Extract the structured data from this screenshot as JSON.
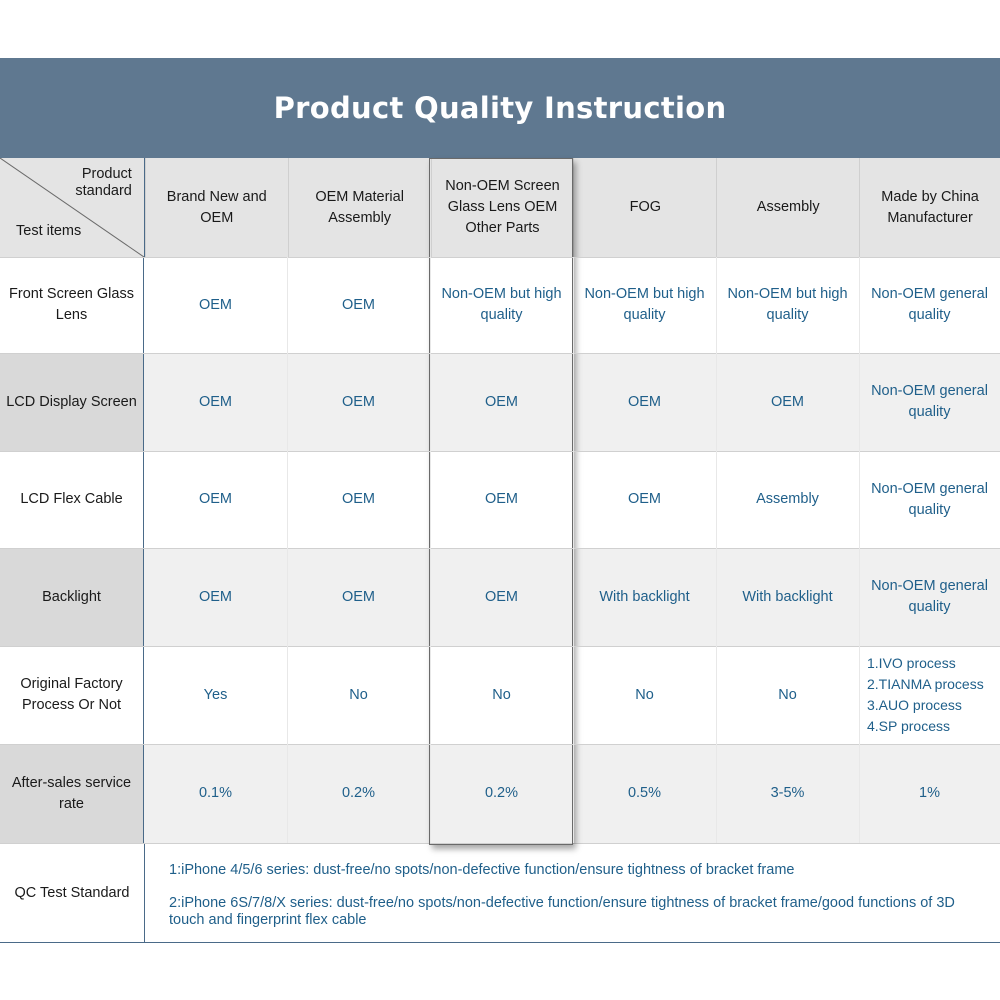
{
  "title": "Product Quality Instruction",
  "corner": {
    "top": "Product standard",
    "bottom": "Test items"
  },
  "columns": [
    "Brand New and OEM",
    "OEM Material Assembly",
    "Non-OEM Screen Glass Lens OEM Other Parts",
    "FOG",
    "Assembly",
    "Made by China Manufacturer"
  ],
  "rows": [
    {
      "label": "Front Screen Glass Lens",
      "values": [
        "OEM",
        "OEM",
        "Non-OEM but high quality",
        "Non-OEM but high quality",
        "Non-OEM but high quality",
        "Non-OEM general quality"
      ]
    },
    {
      "label": "LCD Display Screen",
      "values": [
        "OEM",
        "OEM",
        "OEM",
        "OEM",
        "OEM",
        "Non-OEM general quality"
      ]
    },
    {
      "label": "LCD Flex Cable",
      "values": [
        "OEM",
        "OEM",
        "OEM",
        "OEM",
        "Assembly",
        "Non-OEM general quality"
      ]
    },
    {
      "label": "Backlight",
      "values": [
        "OEM",
        "OEM",
        "OEM",
        "With backlight",
        "With backlight",
        "Non-OEM general quality"
      ]
    },
    {
      "label": "Original Factory Process Or Not",
      "values": [
        "Yes",
        "No",
        "No",
        "No",
        "No",
        "1.IVO process\n2.TIANMA process\n3.AUO process\n4.SP process"
      ]
    },
    {
      "label": "After-sales service rate",
      "values": [
        "0.1%",
        "0.2%",
        "0.2%",
        "0.5%",
        "3-5%",
        "1%"
      ]
    }
  ],
  "qc": {
    "label": "QC Test Standard",
    "line1": "1:iPhone 4/5/6 series: dust-free/no spots/non-defective function/ensure tightness of bracket frame",
    "line2": "2:iPhone 6S/7/8/X series: dust-free/no spots/non-defective function/ensure tightness of bracket frame/good functions of 3D touch and fingerprint flex cable"
  },
  "colors": {
    "banner": "#5f7890",
    "value_text": "#1f5f8a",
    "header_bg": "#e4e4e4",
    "row_alt_bg": "#f0f0f0",
    "label_alt_bg": "#d9d9d9"
  }
}
